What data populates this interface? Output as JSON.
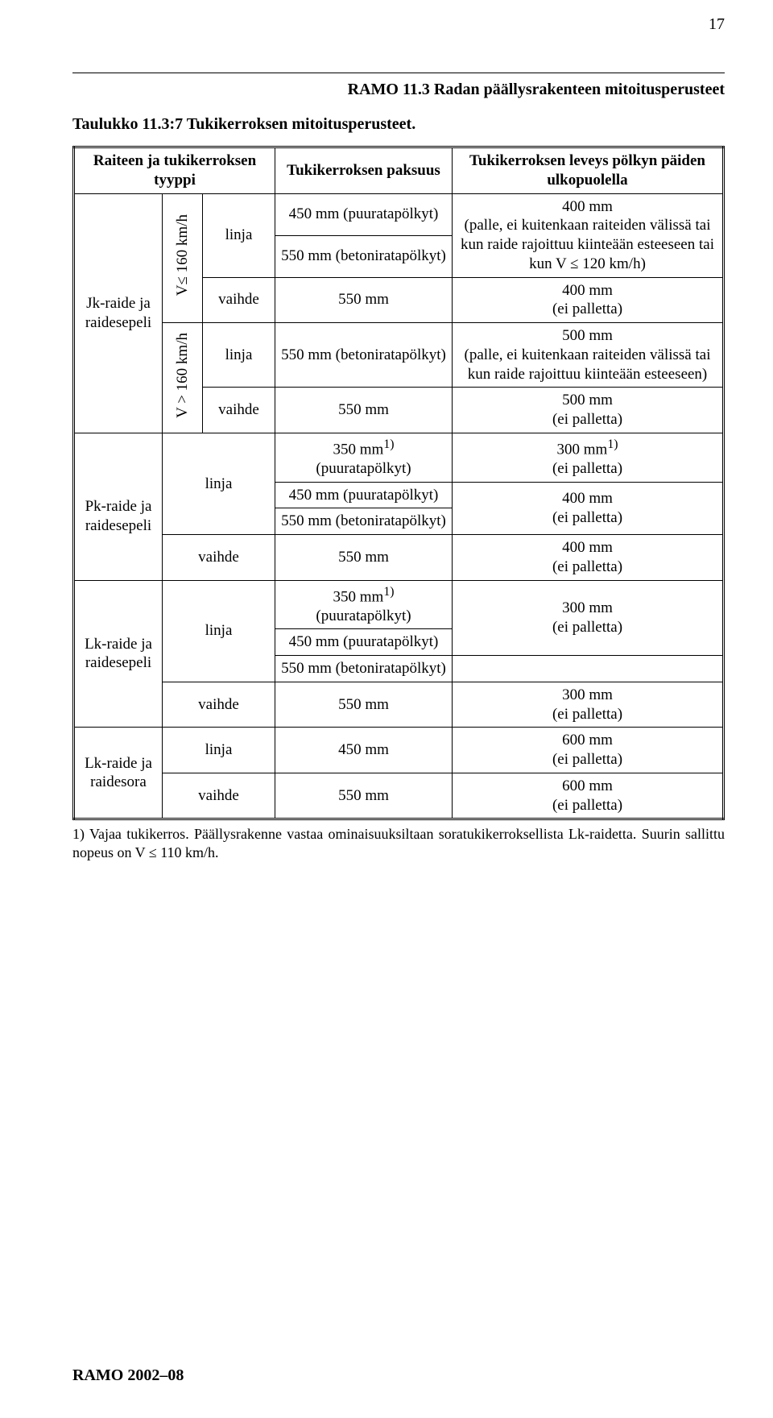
{
  "page_number": "17",
  "section_title": "RAMO 11.3 Radan päällysrakenteen mitoitusperusteet",
  "table_caption": "Taulukko 11.3:7 Tukikerroksen mitoitusperusteet.",
  "header": {
    "col1": "Raiteen ja tukikerroksen tyyppi",
    "col2": "Tukikerroksen paksuus",
    "col3": "Tukikerroksen leveys pölkyn päiden ulkopuolella"
  },
  "jk": {
    "label_a": "Jk-raide ja",
    "label_b": "raidesepeli",
    "v_le": "V≤ 160 km/h",
    "v_gt": "V > 160 km/h",
    "linja": "linja",
    "vaihde": "vaihde",
    "thk_linja1": "450 mm (puuratapölkyt)",
    "thk_linja2": "550 mm (betoniratapölkyt)",
    "width_linja12": "400 mm\n(palle, ei kuitenkaan raiteiden välissä tai kun raide rajoittuu kiinteään esteeseen tai kun V ≤ 120 km/h)",
    "thk_vaihde1": "550 mm",
    "width_vaihde1": "400 mm\n(ei palletta)",
    "thk_linja3": "550 mm (betoniratapölkyt)",
    "width_linja3": "500 mm\n(palle, ei kuitenkaan raiteiden välissä tai kun raide rajoittuu kiinteään esteeseen)",
    "thk_vaihde2": "550 mm",
    "width_vaihde2": "500 mm\n(ei palletta)"
  },
  "pk": {
    "label_a": "Pk-raide ja",
    "label_b": "raidesepeli",
    "linja": "linja",
    "vaihde": "vaihde",
    "thk1_a": "350 mm",
    "thk1_sup": "1)",
    "thk1_b": "(puuratapölkyt)",
    "width1_a": "300 mm",
    "width1_sup": "1)",
    "width1_b": "(ei palletta)",
    "thk2": "450 mm (puuratapölkyt)",
    "width23": "400 mm\n(ei palletta)",
    "thk3": "550 mm (betoniratapölkyt)",
    "thk_vaihde": "550 mm",
    "width_vaihde": "400 mm\n(ei palletta)"
  },
  "lk": {
    "label_a": "Lk-raide ja",
    "label_b": "raidesepeli",
    "linja": "linja",
    "vaihde": "vaihde",
    "thk1_a": "350 mm",
    "thk1_sup": "1)",
    "thk1_b": "(puuratapölkyt)",
    "width12": "300 mm\n(ei palletta)",
    "thk2": "450 mm (puuratapölkyt)",
    "thk3": "550 mm (betoniratapölkyt)",
    "width3": "",
    "thk_vaihde": "550 mm",
    "width_vaihde": "300 mm\n(ei palletta)"
  },
  "lksora": {
    "label_a": "Lk-raide ja",
    "label_b": "raidesora",
    "linja": "linja",
    "vaihde": "vaihde",
    "thk_linja": "450 mm",
    "width_linja": "600 mm\n(ei palletta)",
    "thk_vaihde": "550 mm",
    "width_vaihde": "600 mm\n(ei palletta)"
  },
  "footnote": "1) Vajaa tukikerros. Päällysrakenne vastaa ominaisuuksiltaan soratukikerroksellista Lk-raidetta. Suurin sallittu nopeus on V ≤ 110 km/h.",
  "footer": "RAMO 2002–08"
}
